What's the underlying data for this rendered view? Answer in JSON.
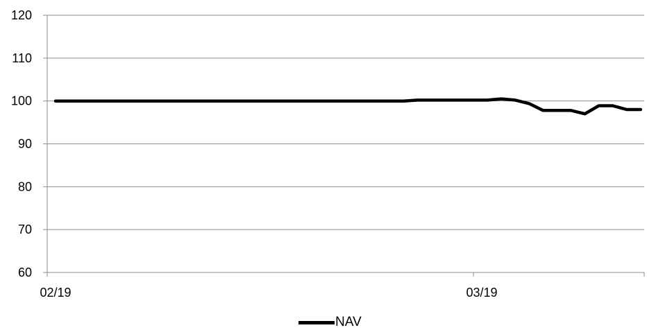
{
  "chart_data": {
    "type": "line",
    "x_ticks": [
      "02/19",
      "03/19"
    ],
    "y_ticks": [
      "60",
      "70",
      "80",
      "90",
      "100",
      "110",
      "120"
    ],
    "ylim": [
      60,
      120
    ],
    "grid": "horizontal",
    "legend_position": "bottom",
    "line_color": "#000000",
    "grid_color": "#8c8c8c",
    "series": [
      {
        "name": "NAV",
        "values": [
          100,
          100,
          100,
          100,
          100,
          100,
          100,
          100,
          100,
          100,
          100,
          100,
          100,
          100,
          100,
          100,
          100,
          100,
          100,
          100,
          100,
          100,
          100,
          100,
          100,
          100,
          100.2,
          100.2,
          100.2,
          100.2,
          100.2,
          100.2,
          100.5,
          100.2,
          99.4,
          97.8,
          97.8,
          97.8,
          97,
          98.9,
          98.9,
          98,
          98
        ]
      }
    ]
  }
}
